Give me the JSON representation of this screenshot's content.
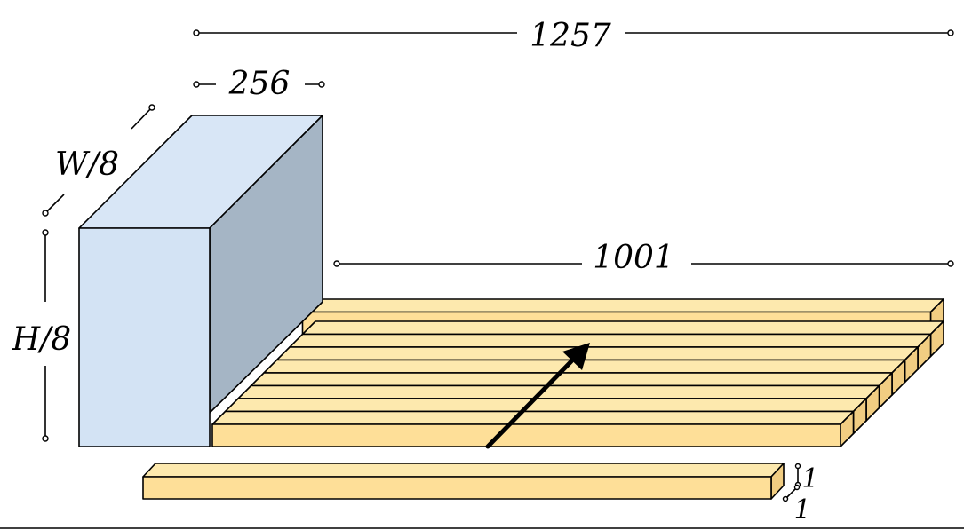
{
  "labels": {
    "total_width": "1257",
    "block_width": "256",
    "block_depth": "W/8",
    "block_height": "H/8",
    "sequence_length": "1001",
    "token_height": "1",
    "token_depth": "1"
  },
  "colors": {
    "block_front": "#d3e3f4",
    "block_top": "#d8e6f6",
    "block_side": "#a5b5c5",
    "slab_front": "#fedf98",
    "slab_top": "#fde9ae",
    "slab_side": "#f1cd82",
    "arrow": "#000000",
    "stroke": "#000000"
  },
  "slab_count": 9
}
